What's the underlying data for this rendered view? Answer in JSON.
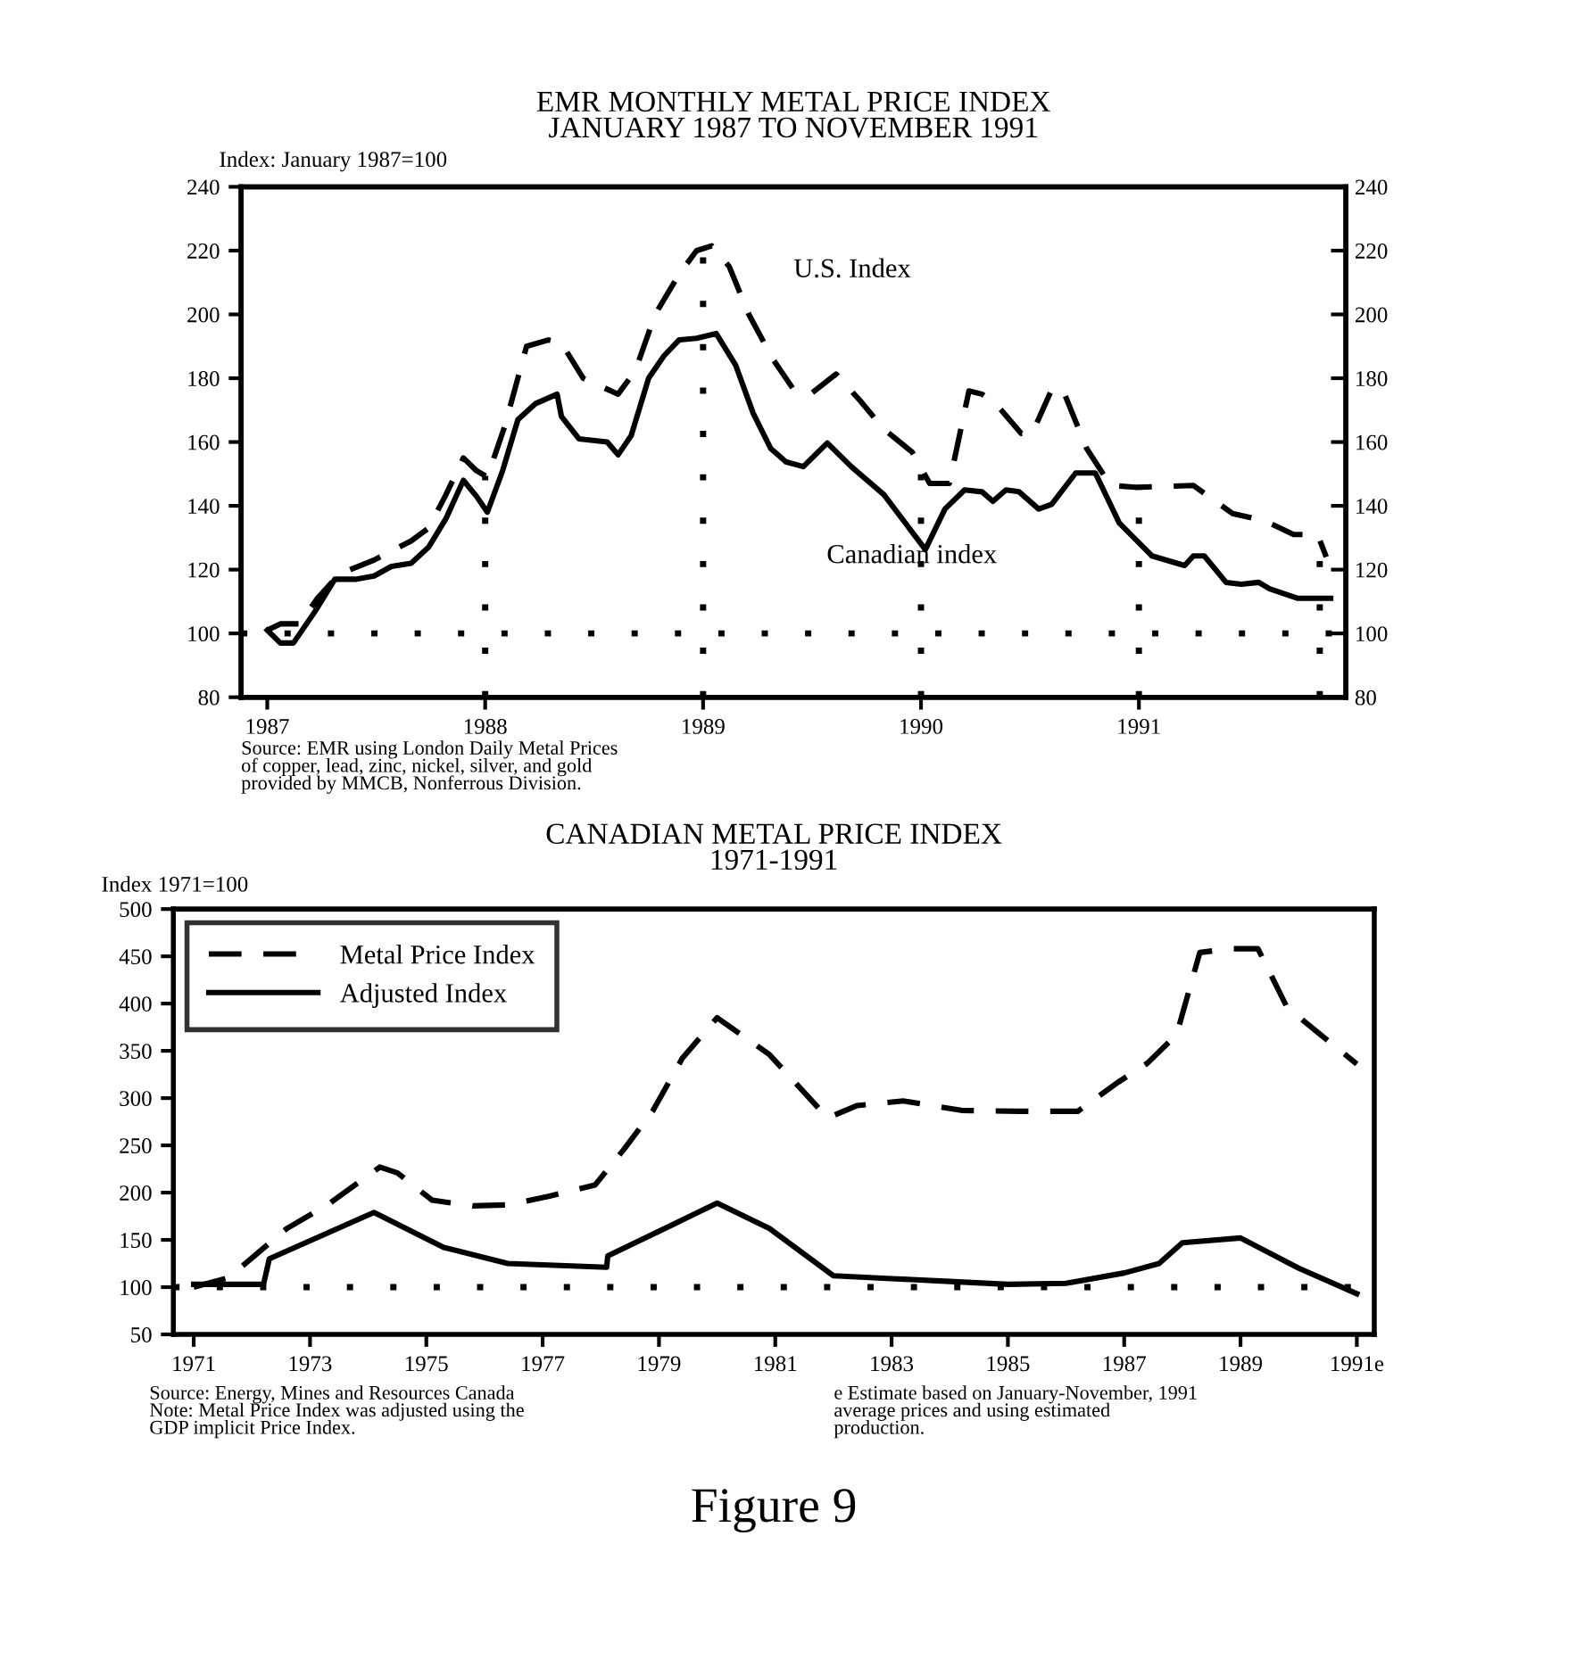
{
  "chart_data": [
    {
      "type": "line",
      "title": "EMR MONTHLY METAL PRICE INDEX\nJANUARY 1987 TO NOVEMBER 1991",
      "ylabel": "Index: January 1987=100",
      "xlim": [
        1986.88,
        1991.95
      ],
      "xticks": [
        1987,
        1988,
        1989,
        1990,
        1991
      ],
      "ylim": [
        80,
        240
      ],
      "yticks": [
        80,
        100,
        120,
        140,
        160,
        180,
        200,
        220,
        240
      ],
      "y2lim": [
        80,
        240
      ],
      "y2ticks": [
        80,
        100,
        120,
        140,
        160,
        180,
        200,
        220,
        240
      ],
      "legend": false,
      "grid": false,
      "marker": "none",
      "series": [
        {
          "name": "U.S. Index",
          "color": "#000000",
          "line_style": "dashed",
          "x": [
            1987.0,
            1987.06,
            1987.15,
            1987.23,
            1987.31,
            1987.38,
            1987.49,
            1987.66,
            1987.74,
            1987.82,
            1987.9,
            1987.96,
            1988.01,
            1988.09,
            1988.19,
            1988.29,
            1988.35,
            1988.45,
            1988.61,
            1988.69,
            1988.78,
            1988.89,
            1988.97,
            1989.04,
            1989.12,
            1989.21,
            1989.32,
            1989.42,
            1989.5,
            1989.61,
            1989.72,
            1989.83,
            1989.96,
            1990.04,
            1990.13,
            1990.22,
            1990.28,
            1990.35,
            1990.46,
            1990.51,
            1990.6,
            1990.65,
            1990.76,
            1990.87,
            1990.99,
            1991.25,
            1991.43,
            1991.58,
            1991.71,
            1991.82,
            1991.86
          ],
          "values": [
            101,
            103,
            103,
            111,
            117,
            120,
            123,
            129,
            133,
            143.5,
            155,
            151,
            149,
            165,
            190,
            192,
            191,
            180,
            175,
            182.5,
            200,
            212.6,
            220,
            221.5,
            215,
            200,
            186,
            176,
            175.4,
            181.3,
            173,
            164,
            156.8,
            147,
            147,
            176,
            175,
            171.5,
            162.7,
            162.7,
            176.5,
            176.5,
            158,
            146.4,
            145.8,
            146.4,
            137.6,
            135.2,
            131,
            131,
            124
          ]
        },
        {
          "name": "Canadian index",
          "color": "#000000",
          "line_style": "solid",
          "x": [
            1987.0,
            1987.06,
            1987.12,
            1987.22,
            1987.31,
            1987.41,
            1987.49,
            1987.57,
            1987.66,
            1987.74,
            1987.82,
            1987.9,
            1987.96,
            1988.01,
            1988.08,
            1988.15,
            1988.23,
            1988.33,
            1988.35,
            1988.43,
            1988.56,
            1988.61,
            1988.67,
            1988.75,
            1988.82,
            1988.89,
            1988.97,
            1989.06,
            1989.15,
            1989.23,
            1989.31,
            1989.38,
            1989.46,
            1989.57,
            1989.68,
            1989.83,
            1990.02,
            1990.11,
            1990.2,
            1990.28,
            1990.33,
            1990.39,
            1990.45,
            1990.54,
            1990.6,
            1990.71,
            1990.8,
            1990.91,
            1991.06,
            1991.21,
            1991.25,
            1991.3,
            1991.4,
            1991.47,
            1991.55,
            1991.6,
            1991.73,
            1991.88
          ],
          "values": [
            101,
            97,
            97,
            107,
            117,
            117,
            118,
            121,
            122,
            127,
            136,
            148,
            143,
            138,
            151,
            167,
            172,
            175,
            168,
            161,
            160,
            156,
            162,
            180,
            187,
            192,
            192.5,
            194,
            184,
            169,
            158,
            153.8,
            152.3,
            159.7,
            152.3,
            143.5,
            126.3,
            139,
            145,
            144.4,
            141.4,
            145,
            144.4,
            139,
            140.5,
            150.3,
            150.3,
            134.6,
            124.3,
            121.3,
            124.3,
            124.3,
            116,
            115.4,
            116,
            114,
            111,
            111
          ]
        }
      ],
      "ref_lines": [
        {
          "axis": "y",
          "value": 100,
          "line_style": "dotted",
          "color": "#000000"
        },
        {
          "axis": "x",
          "value": 1988,
          "line_style": "dotted",
          "color": "#000000"
        },
        {
          "axis": "x",
          "value": 1989,
          "line_style": "dotted",
          "color": "#000000"
        },
        {
          "axis": "x",
          "value": 1990,
          "line_style": "dotted",
          "color": "#000000"
        },
        {
          "axis": "x",
          "value": 1991,
          "line_style": "dotted",
          "color": "#000000"
        },
        {
          "axis": "x",
          "value": 1991.83,
          "line_style": "dotted",
          "color": "#000000"
        }
      ],
      "annotations": [
        "Source: EMR using London Daily Metal Prices\nof copper, lead, zinc, nickel, silver, and gold\nprovided by MMCB, Nonferrous Division."
      ]
    },
    {
      "type": "line",
      "title": "CANADIAN METAL PRICE INDEX\n1971-1991",
      "ylabel": "Index 1971=100",
      "xlim": [
        1970.65,
        1991.3
      ],
      "xticks": [
        1971,
        1973,
        1975,
        1977,
        1979,
        1981,
        1983,
        1985,
        1987,
        1989,
        {
          "value": 1991,
          "label": "1991e"
        }
      ],
      "ylim": [
        50,
        500
      ],
      "yticks": [
        50,
        100,
        150,
        200,
        250,
        300,
        350,
        400,
        450,
        500
      ],
      "legend": "top left",
      "grid": false,
      "marker": "none",
      "series": [
        {
          "name": "Metal Price Index",
          "color": "#000000",
          "line_style": "dashed",
          "x": [
            1971,
            1971.6,
            1972.6,
            1973.3,
            1974.2,
            1974.5,
            1975.1,
            1975.8,
            1976.4,
            1977.1,
            1977.9,
            1978.4,
            1978.9,
            1979.4,
            1980,
            1980.9,
            1981.9,
            1982.4,
            1983.2,
            1984.2,
            1985.2,
            1986.2,
            1986.9,
            1987.4,
            1987.9,
            1988.3,
            1988.8,
            1989.3,
            1989.8,
            1991
          ],
          "values": [
            100,
            110,
            162,
            187,
            227,
            221,
            192,
            186,
            187,
            196,
            208,
            246,
            287,
            342,
            385,
            346,
            279,
            292,
            297,
            287,
            286,
            286,
            317,
            337,
            367,
            454,
            458,
            458,
            396,
            336
          ]
        },
        {
          "name": "Adjusted Index",
          "color": "#000000",
          "line_style": "solid",
          "x": [
            1971,
            1972.2,
            1972.3,
            1974.1,
            1975.3,
            1976.4,
            1978.1,
            1978.12,
            1979.4,
            1980,
            1980.9,
            1982.0,
            1983,
            1984,
            1985,
            1986,
            1987,
            1987.6,
            1988,
            1989,
            1990,
            1991
          ],
          "values": [
            103,
            103,
            130,
            179,
            142,
            125,
            121,
            133,
            171,
            189,
            162,
            112,
            109,
            106,
            103,
            104,
            115,
            125,
            147,
            152,
            120,
            93
          ]
        }
      ],
      "ref_lines": [
        {
          "axis": "y",
          "value": 100,
          "line_style": "dotted",
          "color": "#000000"
        }
      ],
      "annotations": [
        "Source: Energy, Mines and Resources Canada\nNote: Metal Price Index was adjusted using the\nGDP implicit Price Index.",
        "e Estimate based on January-November, 1991\naverage prices and using estimated\nproduction.",
        "Figure 9"
      ]
    }
  ]
}
